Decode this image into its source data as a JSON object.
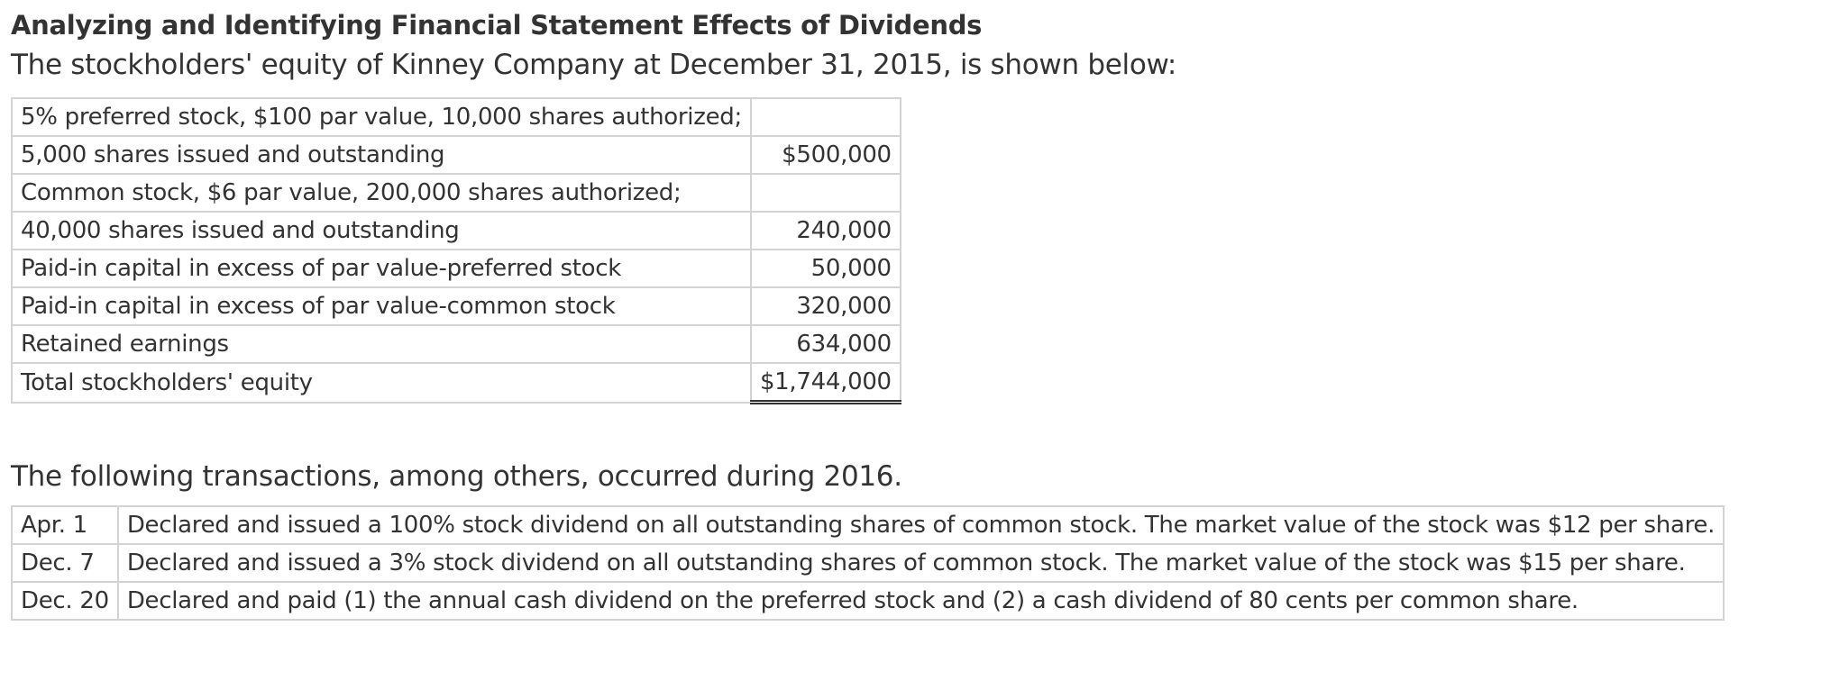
{
  "header": {
    "title": "Analyzing and Identifying Financial Statement Effects of Dividends",
    "intro": "The stockholders' equity of Kinney Company at December 31, 2015, is shown below:"
  },
  "equity_table": {
    "rows": [
      {
        "label": "5% preferred stock, $100 par value, 10,000 shares authorized;",
        "amount": ""
      },
      {
        "label": "5,000 shares issued and outstanding",
        "amount": "$500,000"
      },
      {
        "label": "Common stock, $6 par value, 200,000 shares authorized;",
        "amount": ""
      },
      {
        "label": "40,000 shares issued and outstanding",
        "amount": "240,000"
      },
      {
        "label": "Paid-in capital in excess of par value-preferred stock",
        "amount": "50,000"
      },
      {
        "label": "Paid-in capital in excess of par value-common stock",
        "amount": "320,000"
      },
      {
        "label": "Retained earnings",
        "amount": "634,000"
      },
      {
        "label": "Total stockholders' equity",
        "amount": "$1,744,000"
      }
    ]
  },
  "transactions": {
    "intro": "The following transactions, among others, occurred during 2016.",
    "rows": [
      {
        "date": "Apr. 1",
        "text": "Declared and issued a 100% stock dividend on all outstanding shares of common stock. The market value of the stock was $12 per share."
      },
      {
        "date": "Dec. 7",
        "text": "Declared and issued a 3% stock dividend on all outstanding shares of common stock. The market value of the stock was $15 per share."
      },
      {
        "date": "Dec. 20",
        "text": "Declared and paid (1) the annual cash dividend on the preferred stock and (2) a cash dividend of 80 cents per common share."
      }
    ]
  }
}
